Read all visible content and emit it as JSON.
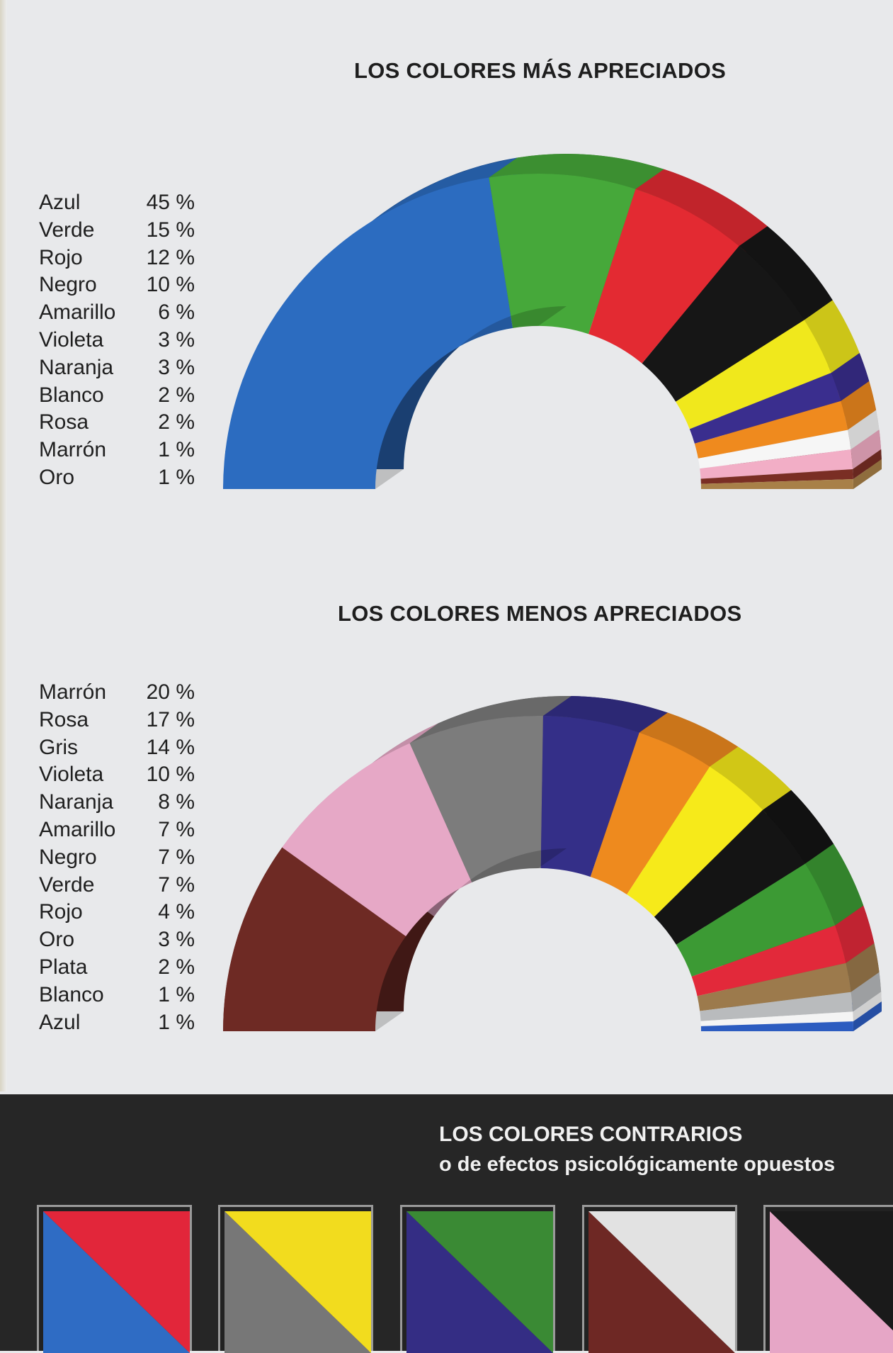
{
  "charts": {
    "most": {
      "title": "LOS COLORES MÁS APRECIADOS",
      "items": [
        {
          "label": "Azul",
          "pct": "45 %"
        },
        {
          "label": "Verde",
          "pct": "15 %"
        },
        {
          "label": "Rojo",
          "pct": "12 %"
        },
        {
          "label": "Negro",
          "pct": "10 %"
        },
        {
          "label": "Amarillo",
          "pct": "6 %"
        },
        {
          "label": "Violeta",
          "pct": "3 %"
        },
        {
          "label": "Naranja",
          "pct": "3 %"
        },
        {
          "label": "Blanco",
          "pct": "2 %"
        },
        {
          "label": "Rosa",
          "pct": "2 %"
        },
        {
          "label": "Marrón",
          "pct": "1 %"
        },
        {
          "label": "Oro",
          "pct": "1 %"
        }
      ]
    },
    "least": {
      "title": "LOS COLORES MENOS APRECIADOS",
      "items": [
        {
          "label": "Marrón",
          "pct": "20 %"
        },
        {
          "label": "Rosa",
          "pct": "17 %"
        },
        {
          "label": "Gris",
          "pct": "14 %"
        },
        {
          "label": "Violeta",
          "pct": "10 %"
        },
        {
          "label": "Naranja",
          "pct": "8 %"
        },
        {
          "label": "Amarillo",
          "pct": "7 %"
        },
        {
          "label": "Negro",
          "pct": "7 %"
        },
        {
          "label": "Verde",
          "pct": "7 %"
        },
        {
          "label": "Rojo",
          "pct": "4 %"
        },
        {
          "label": "Oro",
          "pct": "3 %"
        },
        {
          "label": "Plata",
          "pct": "2 %"
        },
        {
          "label": "Blanco",
          "pct": "1 %"
        },
        {
          "label": "Azul",
          "pct": "1 %"
        }
      ]
    }
  },
  "chart_data": [
    {
      "type": "pie",
      "title": "LOS COLORES MÁS APRECIADOS",
      "categories": [
        "Azul",
        "Verde",
        "Rojo",
        "Negro",
        "Amarillo",
        "Violeta",
        "Naranja",
        "Blanco",
        "Rosa",
        "Marrón",
        "Oro"
      ],
      "values": [
        45,
        15,
        12,
        10,
        6,
        3,
        3,
        2,
        2,
        1,
        1
      ],
      "colors": [
        "#2c6cc0",
        "#46a83a",
        "#e32a32",
        "#161616",
        "#f0e81c",
        "#3a2e8e",
        "#ef8a1e",
        "#f6f6f6",
        "#f2aec6",
        "#7a2e24",
        "#a88048"
      ]
    },
    {
      "type": "pie",
      "title": "LOS COLORES MENOS APRECIADOS",
      "categories": [
        "Marrón",
        "Rosa",
        "Gris",
        "Violeta",
        "Naranja",
        "Amarillo",
        "Negro",
        "Verde",
        "Rojo",
        "Oro",
        "Plata",
        "Blanco",
        "Azul"
      ],
      "values": [
        20,
        17,
        14,
        10,
        8,
        7,
        7,
        7,
        4,
        3,
        2,
        1,
        1
      ],
      "colors": [
        "#6e2a24",
        "#e6a8c6",
        "#7c7c7c",
        "#342f88",
        "#ee8a1e",
        "#f6ea1a",
        "#141414",
        "#3c9a34",
        "#e2293a",
        "#9c7a4c",
        "#b9bbbd",
        "#f4f4f4",
        "#2c5cc0"
      ]
    }
  ],
  "contrarios": {
    "title_line1": "LOS COLORES CONTRARIOS",
    "title_line2": "o de efectos psicológicamente opuestos",
    "pairs": [
      {
        "left": "#2f6cc4",
        "right": "#e2263a",
        "name": "azul-rojo"
      },
      {
        "left": "#777777",
        "right": "#f2dc1e",
        "name": "gris-amarillo"
      },
      {
        "left": "#342d84",
        "right": "#3a8a34",
        "name": "violeta-verde"
      },
      {
        "left": "#6e2824",
        "right": "#e2e2e2",
        "name": "marron-blanco"
      },
      {
        "left": "#e6a6c6",
        "right": "#1a1a1a",
        "name": "rosa-negro"
      }
    ]
  }
}
